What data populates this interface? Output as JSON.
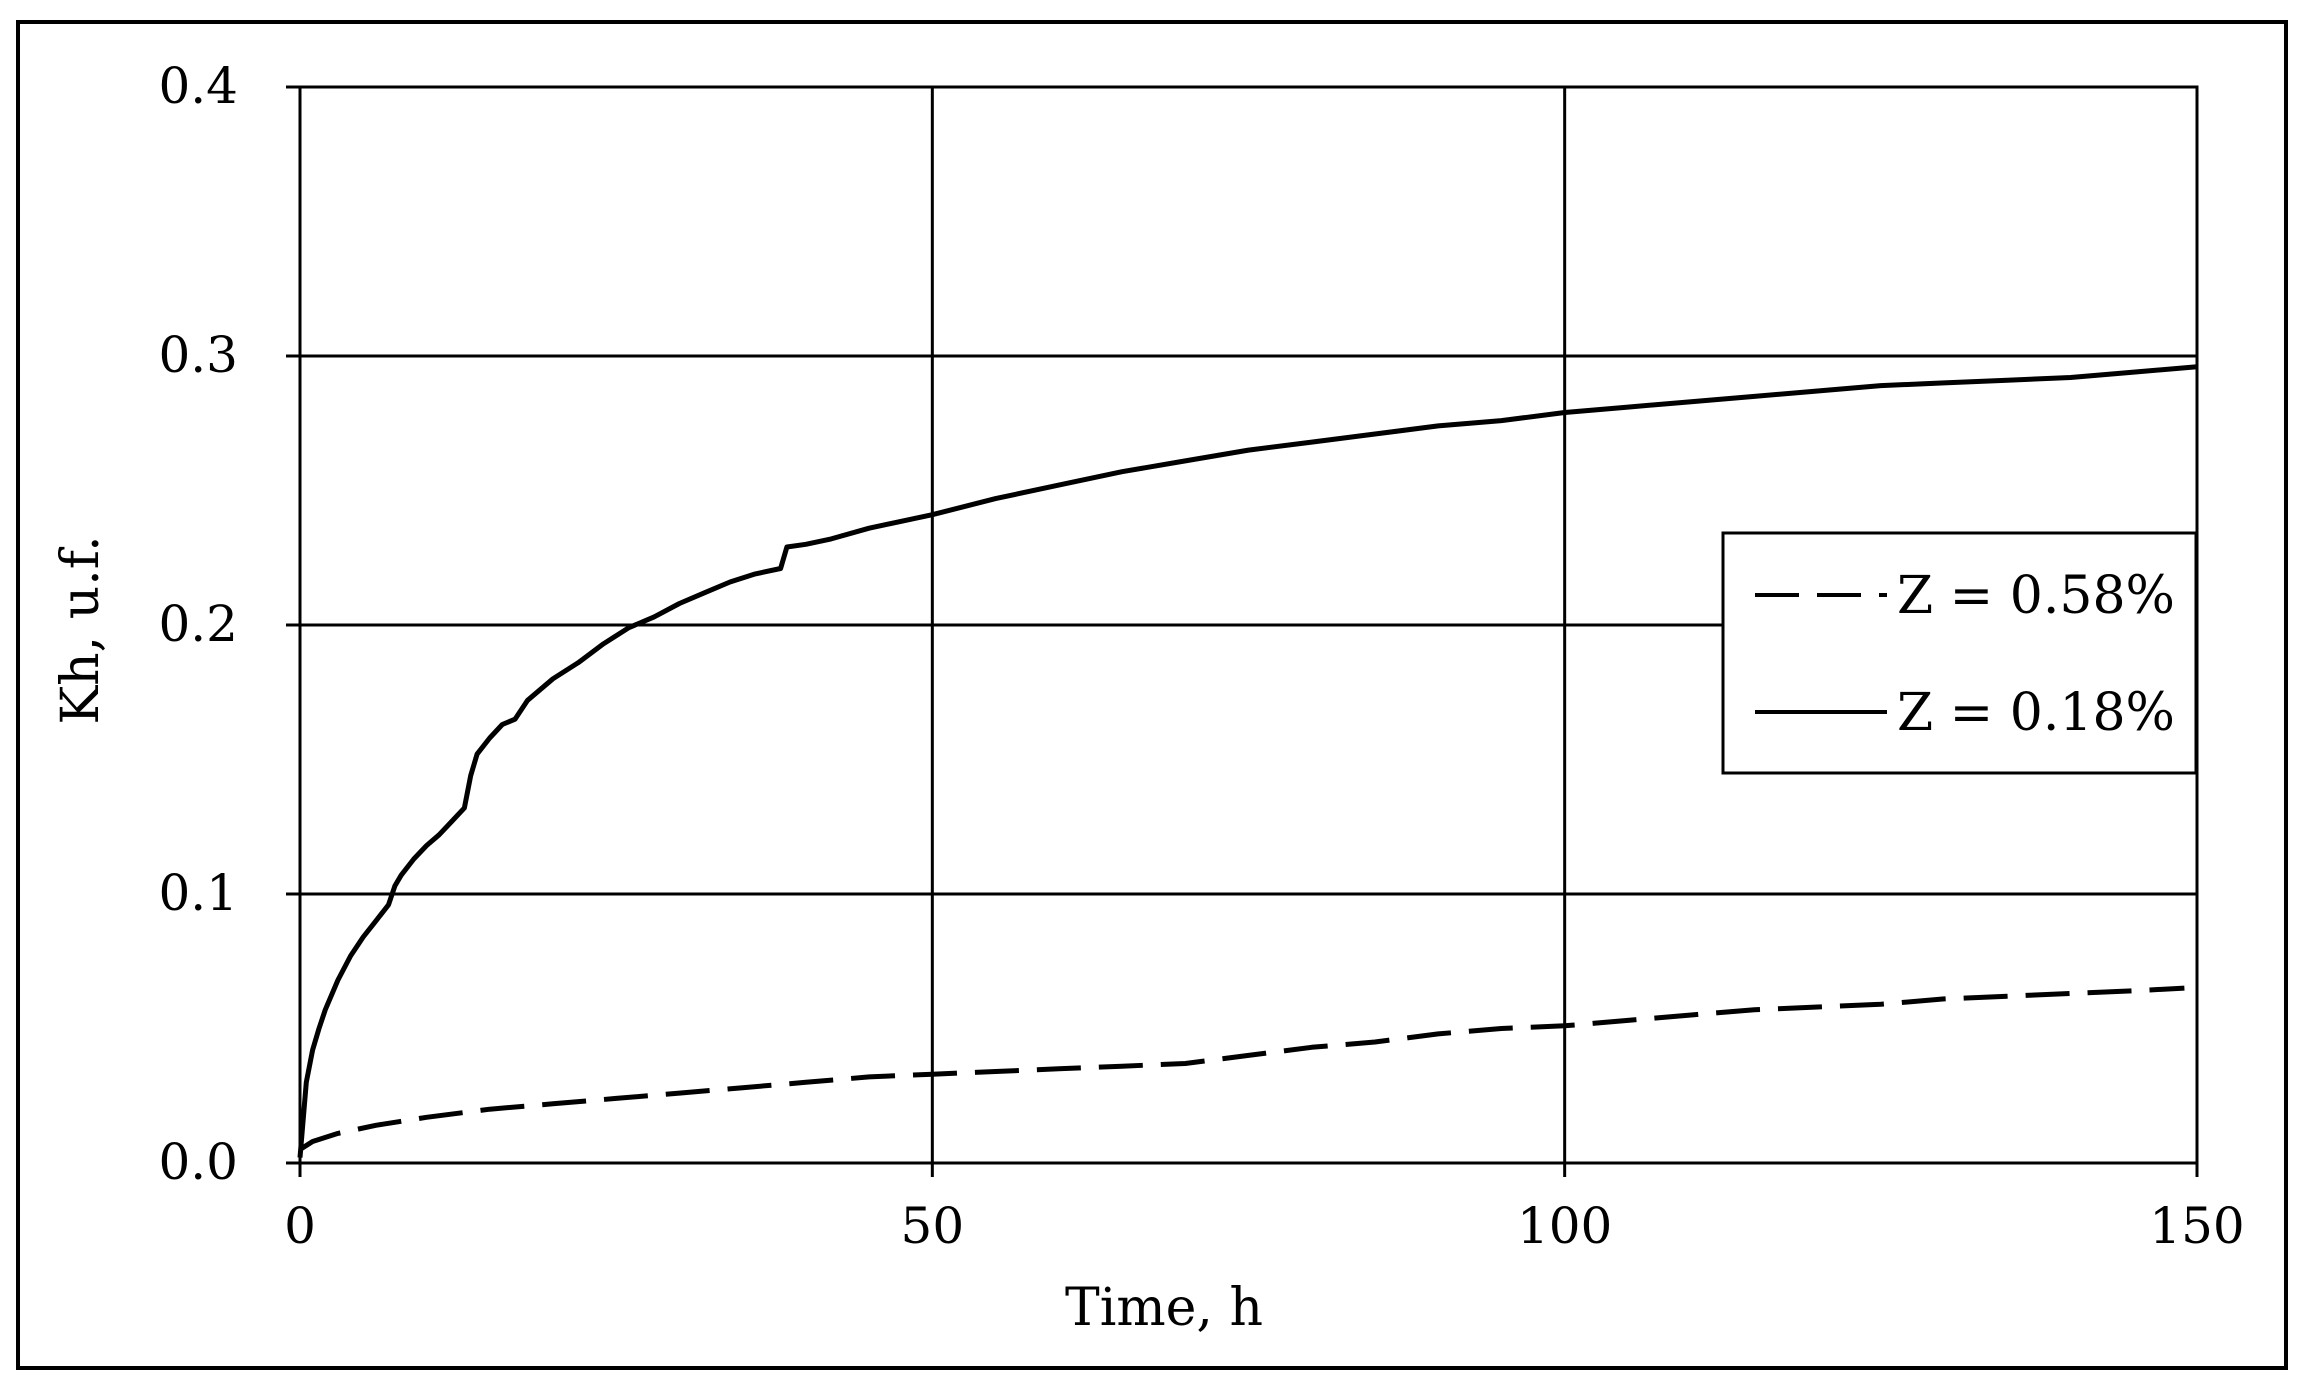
{
  "chart_data": {
    "type": "line",
    "title": "",
    "xlabel": "Time, h",
    "ylabel": "Kh, u.f.",
    "xlim": [
      0,
      150
    ],
    "ylim": [
      0,
      0.4
    ],
    "x_ticks": [
      "0",
      "50",
      "100",
      "150"
    ],
    "y_ticks": [
      "0.0",
      "0.1",
      "0.2",
      "0.3",
      "0.4"
    ],
    "grid": true,
    "legend_position": "right",
    "series": [
      {
        "name": "Z = 0.58%",
        "style": "dashed",
        "color": "#000000",
        "x": [
          0,
          1,
          3,
          6,
          10,
          15,
          20,
          25,
          30,
          35,
          40,
          45,
          50,
          55,
          60,
          65,
          70,
          75,
          80,
          85,
          90,
          95,
          100,
          105,
          110,
          115,
          120,
          125,
          130,
          135,
          140,
          145,
          149
        ],
        "y": [
          0.005,
          0.008,
          0.011,
          0.014,
          0.017,
          0.02,
          0.022,
          0.024,
          0.026,
          0.028,
          0.03,
          0.032,
          0.033,
          0.034,
          0.035,
          0.036,
          0.037,
          0.04,
          0.043,
          0.045,
          0.048,
          0.05,
          0.051,
          0.053,
          0.055,
          0.057,
          0.058,
          0.059,
          0.061,
          0.062,
          0.063,
          0.064,
          0.065
        ]
      },
      {
        "name": "Z = 0.18%",
        "style": "solid",
        "color": "#000000",
        "x": [
          0,
          0.5,
          1,
          1.5,
          2,
          3,
          4,
          5,
          6,
          7,
          7.5,
          8,
          9,
          10,
          11,
          12,
          13,
          13.5,
          14,
          15,
          16,
          17,
          18,
          20,
          22,
          24,
          26,
          28,
          30,
          32,
          34,
          36,
          38,
          38.5,
          40,
          42,
          45,
          50,
          55,
          60,
          65,
          70,
          75,
          80,
          85,
          90,
          95,
          100,
          105,
          110,
          115,
          120,
          125,
          130,
          135,
          140,
          145,
          150
        ],
        "y": [
          0.002,
          0.03,
          0.042,
          0.05,
          0.057,
          0.068,
          0.077,
          0.084,
          0.09,
          0.096,
          0.103,
          0.107,
          0.113,
          0.118,
          0.122,
          0.127,
          0.132,
          0.144,
          0.152,
          0.158,
          0.163,
          0.165,
          0.172,
          0.18,
          0.186,
          0.193,
          0.199,
          0.203,
          0.208,
          0.212,
          0.216,
          0.219,
          0.221,
          0.229,
          0.23,
          0.232,
          0.236,
          0.241,
          0.247,
          0.252,
          0.257,
          0.261,
          0.265,
          0.268,
          0.271,
          0.274,
          0.276,
          0.279,
          0.281,
          0.283,
          0.285,
          0.287,
          0.289,
          0.29,
          0.291,
          0.292,
          0.294,
          0.296
        ]
      }
    ]
  }
}
